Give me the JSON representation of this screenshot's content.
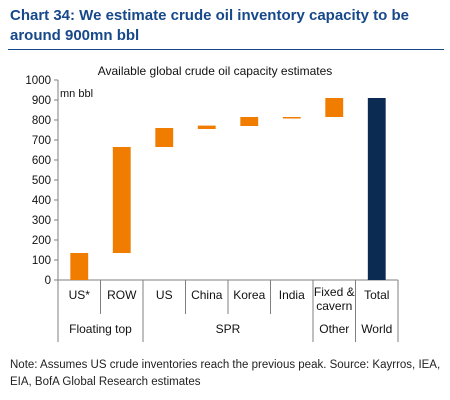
{
  "title": "Chart 34: We estimate crude oil inventory capacity to be around 900mn bbl",
  "footnote": "Note: Assumes US crude inventories reach the previous peak. Source: Kayrros, IEA, EIA, BofA Global Research estimates",
  "colors": {
    "title": "#16488a",
    "increment": "#f07d00",
    "total": "#0c2b52",
    "axis": "#7f7f7f"
  },
  "chart_data": {
    "type": "bar",
    "subtitle": "Available global crude oil capacity estimates",
    "ylabel": "mn bbl",
    "ylim": [
      0,
      1000
    ],
    "yticks": [
      0,
      100,
      200,
      300,
      400,
      500,
      600,
      700,
      800,
      900,
      1000
    ],
    "categories": [
      "US*",
      "ROW",
      "US",
      "China",
      "Korea",
      "India",
      "Fixed & cavern",
      "Total"
    ],
    "category_lines": [
      [
        "US*"
      ],
      [
        "ROW"
      ],
      [
        "US"
      ],
      [
        "China"
      ],
      [
        "Korea"
      ],
      [
        "India"
      ],
      [
        "Fixed &",
        "cavern"
      ],
      [
        "Total"
      ]
    ],
    "groups": [
      {
        "label": "Floating top",
        "span": 2
      },
      {
        "label": "SPR",
        "span": 4
      },
      {
        "label": "Other",
        "span": 1
      },
      {
        "label": "World",
        "span": 1
      }
    ],
    "series": [
      {
        "base": [
          0,
          135,
          665,
          755,
          770,
          808,
          815,
          0
        ],
        "values": [
          135,
          665,
          760,
          772,
          815,
          815,
          910,
          910
        ],
        "kind": [
          "increment",
          "increment",
          "increment",
          "increment",
          "increment",
          "increment",
          "increment",
          "total"
        ]
      }
    ],
    "grid": false,
    "legend": "none"
  }
}
